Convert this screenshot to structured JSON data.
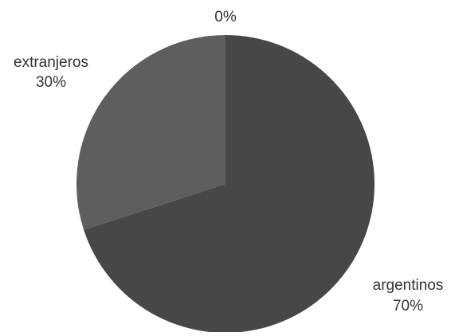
{
  "chart_data": {
    "type": "pie",
    "slices": [
      {
        "name": "argentinos",
        "value": 70,
        "label": "argentinos",
        "percent_label": "70%",
        "color": "#474747"
      },
      {
        "name": "extranjeros",
        "value": 30,
        "label": "extranjeros",
        "percent_label": "30%",
        "color": "#5e5e5e"
      },
      {
        "name": "",
        "value": 0,
        "label": "",
        "percent_label": "0%",
        "color": "#6f6f6f"
      }
    ],
    "start_angle": "12 o'clock",
    "direction": "clockwise",
    "legend": "none",
    "label_color": "#333333",
    "background": "#ffffff"
  }
}
